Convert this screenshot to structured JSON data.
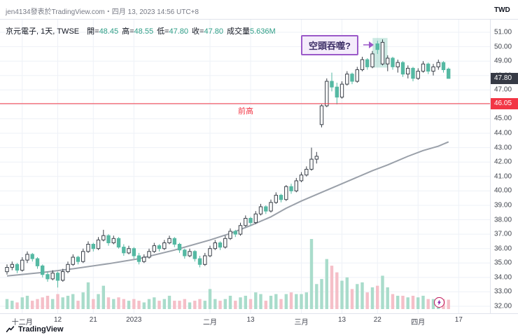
{
  "attribution": "jen4134發表於TradingView.com・四月 13, 2023 14:56 UTC+8",
  "currency": "TWD",
  "symbol": {
    "title": "京元電子, 1天, TWSE",
    "open_label": "開=",
    "open": "48.45",
    "high_label": "高=",
    "high": "48.55",
    "low_label": "低=",
    "low": "47.80",
    "close_label": "收=",
    "close": "47.80",
    "volume_label": "成交量",
    "volume_value": "5.636M"
  },
  "annotation": {
    "text": "空頭吞噬?"
  },
  "level_line": {
    "label": "前高",
    "value": 46.05,
    "display": "46.05"
  },
  "last_price": {
    "value": 47.8,
    "display": "47.80"
  },
  "footer": {
    "brand": "TradingView"
  },
  "colors": {
    "up_border": "#3a4049",
    "up_fill": "#ffffff",
    "down_fill": "#55b9a3",
    "vol_up": "#a9dccb",
    "vol_down": "#f5bfc8",
    "ma_line": "#9aa0a9",
    "level": "#f23645",
    "annotation_border": "#9b59c9",
    "highlight": "#55b9a3",
    "grid": "#eef1f7"
  },
  "chart_data": {
    "type": "candlestick",
    "title": "京元電子 1天 TWSE",
    "y_axis": {
      "min": 32,
      "max": 51,
      "step": 1,
      "unit": "TWD"
    },
    "volume_max": 42,
    "volume_unit": "M",
    "x_ticks": [
      {
        "label": "十二月",
        "i": 3
      },
      {
        "label": "12",
        "i": 10
      },
      {
        "label": "21",
        "i": 17
      },
      {
        "label": "2023",
        "i": 25
      },
      {
        "label": "二月",
        "i": 40
      },
      {
        "label": "13",
        "i": 48
      },
      {
        "label": "三月",
        "i": 58
      },
      {
        "label": "13",
        "i": 66
      },
      {
        "label": "22",
        "i": 73
      },
      {
        "label": "四月",
        "i": 81
      },
      {
        "label": "17",
        "i": 89
      }
    ],
    "candles": [
      [
        34.4,
        34.9,
        34.2,
        34.7,
        6,
        0
      ],
      [
        34.7,
        35.1,
        34.5,
        34.9,
        5,
        0
      ],
      [
        34.9,
        35.0,
        34.3,
        34.5,
        4,
        1
      ],
      [
        34.5,
        35.4,
        34.4,
        35.2,
        7,
        0
      ],
      [
        35.2,
        35.8,
        35.0,
        35.6,
        8,
        0
      ],
      [
        35.6,
        35.7,
        35.1,
        35.3,
        5,
        1
      ],
      [
        35.3,
        35.4,
        34.6,
        34.8,
        6,
        1
      ],
      [
        34.8,
        34.9,
        34.0,
        34.2,
        7,
        1
      ],
      [
        34.2,
        34.4,
        33.7,
        33.9,
        8,
        1
      ],
      [
        33.9,
        34.5,
        33.8,
        34.3,
        6,
        0
      ],
      [
        34.3,
        34.4,
        33.3,
        33.8,
        9,
        1
      ],
      [
        33.8,
        34.6,
        33.7,
        34.4,
        7,
        0
      ],
      [
        34.4,
        35.1,
        34.3,
        34.9,
        8,
        0
      ],
      [
        34.9,
        35.6,
        34.8,
        35.4,
        9,
        0
      ],
      [
        35.4,
        35.5,
        34.9,
        35.1,
        5,
        1
      ],
      [
        35.1,
        36.0,
        35.0,
        35.8,
        10,
        0
      ],
      [
        35.8,
        36.5,
        35.7,
        36.3,
        16,
        0
      ],
      [
        36.3,
        36.4,
        35.8,
        36.0,
        6,
        1
      ],
      [
        36.0,
        36.8,
        35.9,
        36.6,
        9,
        0
      ],
      [
        36.6,
        37.3,
        36.5,
        36.9,
        14,
        0
      ],
      [
        36.9,
        37.0,
        36.2,
        36.4,
        7,
        1
      ],
      [
        36.4,
        36.9,
        36.3,
        36.7,
        6,
        0
      ],
      [
        36.7,
        36.8,
        36.0,
        36.1,
        7,
        1
      ],
      [
        36.1,
        36.3,
        35.5,
        35.7,
        6,
        1
      ],
      [
        35.7,
        36.2,
        35.6,
        36.0,
        5,
        0
      ],
      [
        36.0,
        36.1,
        35.3,
        35.5,
        6,
        1
      ],
      [
        35.5,
        35.7,
        34.9,
        35.1,
        5,
        1
      ],
      [
        35.1,
        35.6,
        35.0,
        35.4,
        4,
        0
      ],
      [
        35.4,
        36.0,
        35.3,
        35.8,
        6,
        0
      ],
      [
        35.8,
        36.4,
        35.7,
        36.2,
        7,
        0
      ],
      [
        36.2,
        36.3,
        35.8,
        36.0,
        5,
        1
      ],
      [
        36.0,
        36.6,
        35.9,
        36.4,
        6,
        0
      ],
      [
        36.4,
        36.9,
        36.3,
        36.7,
        8,
        0
      ],
      [
        36.7,
        36.8,
        36.1,
        36.3,
        5,
        1
      ],
      [
        36.3,
        36.4,
        35.7,
        35.9,
        5,
        1
      ],
      [
        35.9,
        36.0,
        35.3,
        35.5,
        6,
        1
      ],
      [
        35.5,
        36.0,
        35.4,
        35.8,
        4,
        0
      ],
      [
        35.8,
        35.9,
        35.1,
        35.3,
        5,
        1
      ],
      [
        35.3,
        35.5,
        34.7,
        34.9,
        6,
        1
      ],
      [
        34.9,
        35.7,
        34.8,
        35.5,
        5,
        0
      ],
      [
        35.5,
        36.2,
        35.4,
        36.0,
        12,
        0
      ],
      [
        36.0,
        36.6,
        35.9,
        36.4,
        6,
        0
      ],
      [
        36.4,
        36.5,
        35.9,
        36.1,
        5,
        1
      ],
      [
        36.1,
        36.9,
        36.0,
        36.7,
        6,
        0
      ],
      [
        36.7,
        37.4,
        36.6,
        37.2,
        8,
        0
      ],
      [
        37.2,
        37.3,
        36.8,
        37.0,
        5,
        1
      ],
      [
        37.0,
        37.8,
        36.9,
        37.6,
        7,
        0
      ],
      [
        37.6,
        38.3,
        37.5,
        38.1,
        8,
        0
      ],
      [
        38.1,
        38.2,
        37.6,
        37.8,
        6,
        1
      ],
      [
        37.8,
        38.6,
        37.7,
        38.4,
        10,
        0
      ],
      [
        38.4,
        39.1,
        38.3,
        38.9,
        9,
        0
      ],
      [
        38.9,
        39.0,
        38.4,
        38.6,
        5,
        1
      ],
      [
        38.6,
        39.4,
        38.5,
        39.2,
        8,
        0
      ],
      [
        39.2,
        39.9,
        39.1,
        39.7,
        9,
        0
      ],
      [
        39.7,
        39.8,
        39.2,
        39.4,
        6,
        1
      ],
      [
        39.4,
        40.4,
        39.3,
        40.3,
        9,
        0
      ],
      [
        40.3,
        40.5,
        39.8,
        40.0,
        10,
        1
      ],
      [
        40.0,
        40.9,
        39.9,
        40.7,
        9,
        0
      ],
      [
        40.7,
        41.3,
        40.6,
        41.1,
        9,
        0
      ],
      [
        41.1,
        41.7,
        41.0,
        41.5,
        10,
        0
      ],
      [
        41.5,
        43.0,
        41.4,
        42.2,
        42,
        0
      ],
      [
        42.2,
        42.7,
        41.9,
        42.4,
        15,
        0
      ],
      [
        44.6,
        46.0,
        44.4,
        45.9,
        18,
        0
      ],
      [
        45.9,
        47.8,
        45.8,
        47.6,
        30,
        0
      ],
      [
        47.6,
        48.2,
        46.9,
        47.2,
        26,
        1
      ],
      [
        47.2,
        47.5,
        46.0,
        46.5,
        22,
        1
      ],
      [
        46.5,
        47.6,
        46.4,
        47.4,
        17,
        0
      ],
      [
        47.4,
        48.3,
        47.3,
        48.1,
        19,
        0
      ],
      [
        48.1,
        48.2,
        47.4,
        47.6,
        12,
        1
      ],
      [
        47.6,
        48.6,
        47.5,
        48.4,
        15,
        0
      ],
      [
        48.4,
        49.3,
        48.3,
        49.1,
        16,
        0
      ],
      [
        49.1,
        49.2,
        48.4,
        48.6,
        10,
        1
      ],
      [
        48.6,
        49.7,
        48.5,
        49.5,
        13,
        0
      ],
      [
        50.2,
        50.4,
        49.5,
        49.8,
        14,
        1
      ],
      [
        50.3,
        50.5,
        48.7,
        48.8,
        20,
        0
      ],
      [
        48.8,
        49.4,
        48.3,
        49.2,
        13,
        0
      ],
      [
        49.2,
        49.3,
        48.4,
        48.6,
        9,
        1
      ],
      [
        48.6,
        49.1,
        48.2,
        48.9,
        8,
        0
      ],
      [
        48.9,
        49.0,
        47.9,
        48.1,
        8,
        1
      ],
      [
        48.1,
        48.7,
        47.8,
        48.5,
        7,
        0
      ],
      [
        48.5,
        48.6,
        47.6,
        47.8,
        8,
        1
      ],
      [
        47.8,
        48.5,
        47.7,
        48.3,
        7,
        0
      ],
      [
        48.3,
        49.0,
        48.2,
        48.8,
        8,
        0
      ],
      [
        48.8,
        48.9,
        48.1,
        48.3,
        6,
        1
      ],
      [
        48.3,
        48.8,
        48.0,
        48.6,
        6,
        0
      ],
      [
        48.6,
        49.1,
        48.4,
        48.9,
        7,
        0
      ],
      [
        48.9,
        49.0,
        48.2,
        48.4,
        6,
        1
      ],
      [
        48.45,
        48.55,
        47.8,
        47.8,
        5.636,
        1
      ]
    ],
    "ma_points": [
      [
        0,
        34.1
      ],
      [
        7,
        34.35
      ],
      [
        13,
        34.6
      ],
      [
        20,
        34.95
      ],
      [
        26,
        35.3
      ],
      [
        33,
        35.9
      ],
      [
        40,
        36.6
      ],
      [
        44,
        37.05
      ],
      [
        48,
        37.6
      ],
      [
        52,
        38.2
      ],
      [
        55,
        38.8
      ],
      [
        58,
        39.3
      ],
      [
        62,
        39.9
      ],
      [
        65,
        40.35
      ],
      [
        68,
        40.8
      ],
      [
        72,
        41.4
      ],
      [
        75,
        41.8
      ],
      [
        79,
        42.4
      ],
      [
        82,
        42.8
      ],
      [
        85,
        43.1
      ],
      [
        87,
        43.4
      ]
    ],
    "highlight_box": {
      "i1": 73,
      "i2": 74,
      "top": 50.6,
      "bottom": 48.55
    }
  }
}
